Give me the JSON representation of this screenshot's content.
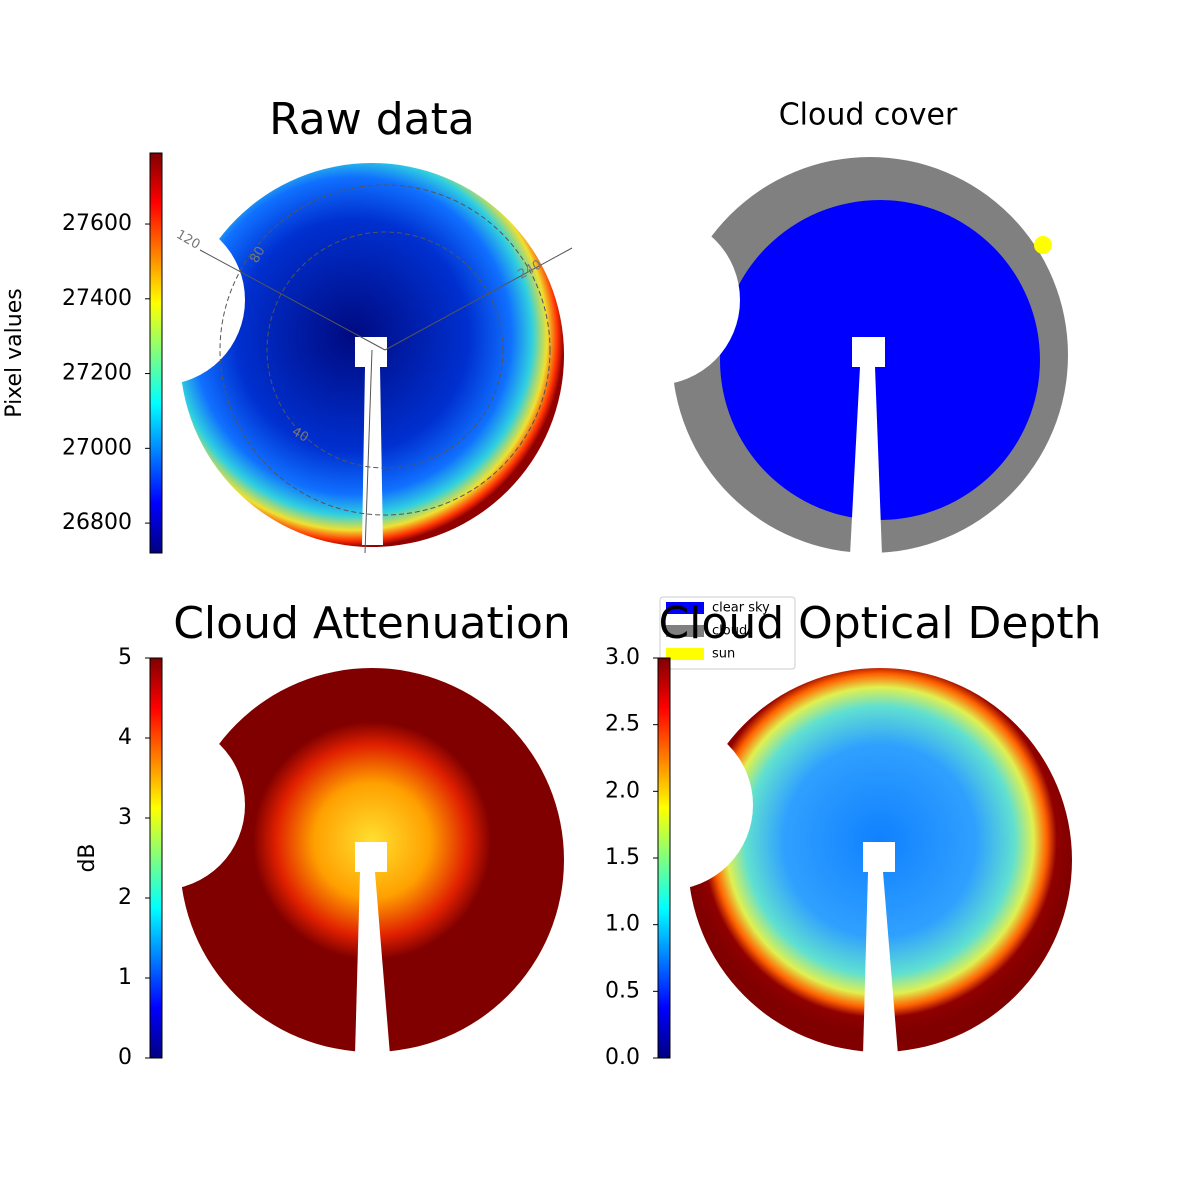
{
  "chart_data": [
    {
      "type": "image",
      "title": "Raw data",
      "colorbar_label": "Pixel values",
      "colormap": "jet",
      "clim": [
        26720,
        27790
      ],
      "cticks": [
        26800,
        27000,
        27200,
        27400,
        27600
      ],
      "annotations": [
        "120",
        "80",
        "240",
        "40"
      ]
    },
    {
      "type": "image",
      "title": "Cloud cover",
      "series": [
        {
          "name": "clear sky",
          "color": "#0000ff"
        },
        {
          "name": "cloud",
          "color": "#808080"
        },
        {
          "name": "sun",
          "color": "#ffff00"
        }
      ]
    },
    {
      "type": "image",
      "title": "Cloud Attenuation",
      "colorbar_label": "dB",
      "colormap": "jet",
      "clim": [
        0,
        5
      ],
      "cticks": [
        0,
        1,
        2,
        3,
        4,
        5
      ]
    },
    {
      "type": "image",
      "title": "Cloud Optical Depth",
      "colormap": "jet",
      "clim": [
        0,
        3
      ],
      "cticks": [
        {
          "value": 0,
          "label": "0.0"
        },
        0.5,
        {
          "value": 1,
          "label": "1.0"
        },
        1.5,
        {
          "value": 2,
          "label": "2.0"
        },
        2.5,
        {
          "value": 3,
          "label": "3.0"
        }
      ]
    }
  ]
}
